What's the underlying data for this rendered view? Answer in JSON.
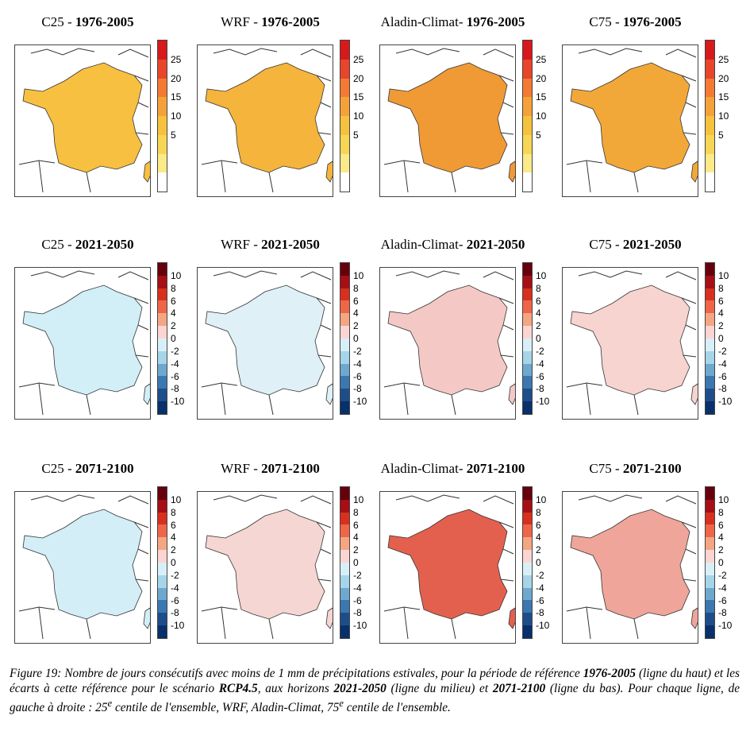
{
  "panels": [
    {
      "model": "C25",
      "sep": " - ",
      "period": "1976-2005",
      "row": 0,
      "col": 0,
      "scale": "abs",
      "fill": "#f8c040"
    },
    {
      "model": "WRF",
      "sep": " - ",
      "period": "1976-2005",
      "row": 0,
      "col": 1,
      "scale": "abs",
      "fill": "#f5b43c"
    },
    {
      "model": "Aladin-Climat",
      "sep": "- ",
      "period": "1976-2005",
      "row": 0,
      "col": 2,
      "scale": "abs",
      "fill": "#f09a36"
    },
    {
      "model": "C75",
      "sep": " - ",
      "period": "1976-2005",
      "row": 0,
      "col": 3,
      "scale": "abs",
      "fill": "#f2a838"
    },
    {
      "model": "C25",
      "sep": " - ",
      "period": "2021-2050",
      "row": 1,
      "col": 0,
      "scale": "anom",
      "fill": "#d2eef7"
    },
    {
      "model": "WRF",
      "sep": " - ",
      "period": "2021-2050",
      "row": 1,
      "col": 1,
      "scale": "anom",
      "fill": "#dff0f6"
    },
    {
      "model": "Aladin-Climat",
      "sep": "- ",
      "period": "2021-2050",
      "row": 1,
      "col": 2,
      "scale": "anom",
      "fill": "#f4c9c5"
    },
    {
      "model": "C75",
      "sep": " - ",
      "period": "2021-2050",
      "row": 1,
      "col": 3,
      "scale": "anom",
      "fill": "#f7d4d0"
    },
    {
      "model": "C25",
      "sep": " - ",
      "period": "2071-2100",
      "row": 2,
      "col": 0,
      "scale": "anom",
      "fill": "#d4eef7"
    },
    {
      "model": "WRF",
      "sep": " - ",
      "period": "2071-2100",
      "row": 2,
      "col": 1,
      "scale": "anom",
      "fill": "#f6d6d2"
    },
    {
      "model": "Aladin-Climat",
      "sep": "- ",
      "period": "2071-2100",
      "row": 2,
      "col": 2,
      "scale": "anom",
      "fill": "#e4604e"
    },
    {
      "model": "C75",
      "sep": " - ",
      "period": "2071-2100",
      "row": 2,
      "col": 3,
      "scale": "anom",
      "fill": "#f0a59a"
    }
  ],
  "scales": {
    "abs": {
      "ticks": [
        "25",
        "20",
        "15",
        "10",
        "5"
      ],
      "colors": [
        "#d7191c",
        "#e8452a",
        "#f47a34",
        "#f5a13a",
        "#f6c23e",
        "#f8d655",
        "#fbe98a",
        "#ffffff"
      ]
    },
    "anom": {
      "ticks": [
        "10",
        "8",
        "6",
        "4",
        "2",
        "0",
        "-2",
        "-4",
        "-6",
        "-8",
        "-10"
      ],
      "colors": [
        "#67000d",
        "#a50f15",
        "#d7301f",
        "#ef6548",
        "#f4a582",
        "#fcd5d2",
        "#d7f0f7",
        "#a6d4e8",
        "#6fa8cf",
        "#3b78b0",
        "#1d4e8a",
        "#08306b"
      ]
    }
  },
  "caption": {
    "p1": "Figure 19: Nombre de jours consécutifs avec moins de 1 mm de précipitations estivales, pour la période de référence ",
    "b1": "1976-2005",
    "p2": " (ligne du haut) et les écarts à cette référence pour le scénario ",
    "b2": "RCP4.5",
    "p3": ", aux horizons ",
    "b3": "2021-2050",
    "p4": " (ligne du milieu) et ",
    "b4": "2071-2100",
    "p5": " (ligne du bas). Pour chaque ligne, de gauche à droite : 25",
    "sup1": "e",
    "p6": " centile de l'ensemble, WRF, Aladin-Climat, 75",
    "sup2": "e",
    "p7": " centile de l'ensemble."
  }
}
